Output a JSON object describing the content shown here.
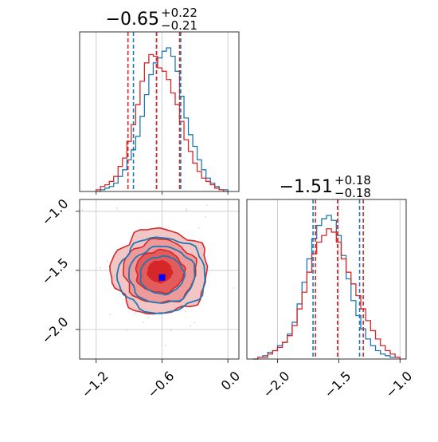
{
  "chart_data": [
    {
      "type": "histogram",
      "panel": "marginal-x",
      "title": {
        "value": "−0.65",
        "plus": "+0.22",
        "minus": "−0.21"
      },
      "xlim": [
        -1.35,
        0.1
      ],
      "grid": true,
      "series": [
        {
          "color": "#1f77b4",
          "bins": [
            -1.2,
            -1.16,
            -1.12,
            -1.08,
            -1.04,
            -1.0,
            -0.96,
            -0.92,
            -0.88,
            -0.84,
            -0.8,
            -0.76,
            -0.72,
            -0.68,
            -0.64,
            -0.6,
            -0.56,
            -0.52,
            -0.48,
            -0.44,
            -0.4,
            -0.36,
            -0.32,
            -0.28,
            -0.24,
            -0.2,
            -0.16,
            -0.12,
            -0.08,
            -0.04,
            0.0
          ],
          "values": [
            0,
            1,
            2,
            3,
            5,
            9,
            13,
            19,
            25,
            33,
            45,
            58,
            70,
            77,
            80,
            84,
            86,
            81,
            72,
            57,
            44,
            34,
            27,
            19,
            13,
            8,
            5,
            3,
            1,
            1
          ],
          "quantile_lines": [
            -0.86,
            -0.65,
            -0.43
          ]
        },
        {
          "color": "#d62728",
          "bins": [
            -1.2,
            -1.16,
            -1.12,
            -1.08,
            -1.04,
            -1.0,
            -0.96,
            -0.92,
            -0.88,
            -0.84,
            -0.8,
            -0.76,
            -0.72,
            -0.68,
            -0.64,
            -0.6,
            -0.56,
            -0.52,
            -0.48,
            -0.44,
            -0.4,
            -0.36,
            -0.32,
            -0.28,
            -0.24,
            -0.2,
            -0.16,
            -0.12,
            -0.08,
            -0.04,
            0.0
          ],
          "values": [
            1,
            3,
            4,
            6,
            9,
            15,
            20,
            30,
            40,
            52,
            66,
            77,
            82,
            81,
            74,
            72,
            67,
            59,
            52,
            42,
            31,
            24,
            17,
            12,
            8,
            6,
            4,
            2,
            1,
            0
          ],
          "quantile_lines": [
            -0.91,
            -0.65,
            -0.44
          ]
        }
      ]
    },
    {
      "type": "histogram",
      "panel": "marginal-y",
      "title": {
        "value": "−1.51",
        "plus": "+0.18",
        "minus": "−0.18"
      },
      "xlim": [
        -2.25,
        -0.95
      ],
      "xticks": [
        "−2.0",
        "−1.5",
        "−1.0"
      ],
      "xtick_values": [
        -2.0,
        -1.5,
        -1.0
      ],
      "grid": true,
      "series": [
        {
          "color": "#1f77b4",
          "bins": [
            -2.2,
            -2.16,
            -2.12,
            -2.08,
            -2.04,
            -2.0,
            -1.96,
            -1.92,
            -1.88,
            -1.84,
            -1.8,
            -1.76,
            -1.72,
            -1.68,
            -1.64,
            -1.6,
            -1.56,
            -1.52,
            -1.48,
            -1.44,
            -1.4,
            -1.36,
            -1.32,
            -1.28,
            -1.24,
            -1.2,
            -1.16,
            -1.12,
            -1.08,
            -1.04,
            -1.0
          ],
          "values": [
            0,
            1,
            2,
            4,
            5,
            8,
            10,
            15,
            22,
            33,
            46,
            60,
            72,
            80,
            84,
            86,
            83,
            74,
            62,
            48,
            35,
            26,
            18,
            12,
            8,
            5,
            3,
            2,
            1,
            1
          ],
          "quantile_lines": [
            -1.71,
            -1.51,
            -1.33
          ]
        },
        {
          "color": "#d62728",
          "bins": [
            -2.2,
            -2.16,
            -2.12,
            -2.08,
            -2.04,
            -2.0,
            -1.96,
            -1.92,
            -1.88,
            -1.84,
            -1.8,
            -1.76,
            -1.72,
            -1.68,
            -1.64,
            -1.6,
            -1.56,
            -1.52,
            -1.48,
            -1.44,
            -1.4,
            -1.36,
            -1.32,
            -1.28,
            -1.24,
            -1.2,
            -1.16,
            -1.12,
            -1.08,
            -1.04,
            -1.0
          ],
          "values": [
            0,
            1,
            1,
            3,
            5,
            7,
            10,
            14,
            20,
            30,
            40,
            52,
            63,
            70,
            74,
            78,
            76,
            70,
            60,
            52,
            45,
            38,
            30,
            23,
            17,
            12,
            8,
            5,
            3,
            1
          ],
          "quantile_lines": [
            -1.69,
            -1.51,
            -1.3
          ]
        }
      ]
    },
    {
      "type": "contour",
      "panel": "joint",
      "xlim": [
        -1.35,
        0.1
      ],
      "ylim": [
        -2.25,
        -0.9
      ],
      "xticks": [
        "−1.2",
        "−0.6",
        "0.0"
      ],
      "xtick_values": [
        -1.2,
        -0.6,
        0.0
      ],
      "yticks": [
        "−1.0",
        "−1.5",
        "−2.0"
      ],
      "ytick_values": [
        -1.0,
        -1.5,
        -2.0
      ],
      "grid": true,
      "series": [
        {
          "color": "#d62728",
          "center": [
            -0.62,
            -1.51
          ],
          "sigma": [
            0.22,
            0.18
          ],
          "filled": true
        },
        {
          "color": "#1f77b4",
          "center": [
            -0.6,
            -1.54
          ],
          "sigma": [
            0.2,
            0.16
          ],
          "filled": false
        }
      ],
      "markers": [
        {
          "color": "#d62728",
          "x": -0.62,
          "y": -1.51
        },
        {
          "color": "#0000ff",
          "x": -0.6,
          "y": -1.56
        }
      ]
    }
  ]
}
